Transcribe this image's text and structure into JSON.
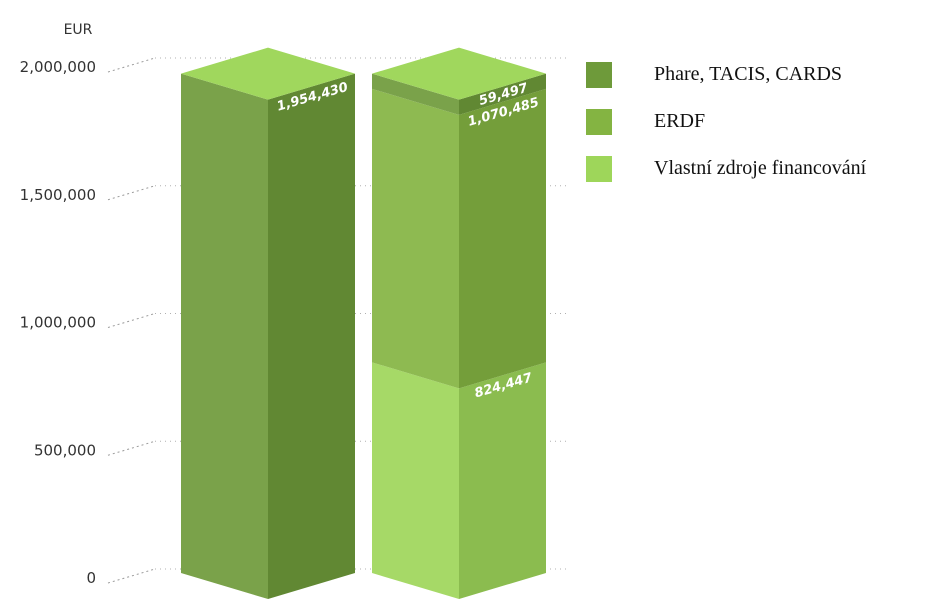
{
  "chart_data": {
    "type": "bar",
    "stacked": true,
    "unit_label": "EUR",
    "ylim": [
      0,
      2000000
    ],
    "y_ticks": [
      {
        "value": 0,
        "label": "0"
      },
      {
        "value": 500000,
        "label": "500,000"
      },
      {
        "value": 1000000,
        "label": "1,000,000"
      },
      {
        "value": 1500000,
        "label": "1,500,000"
      },
      {
        "value": 2000000,
        "label": "2,000,000"
      }
    ],
    "grid": true,
    "legend_position": "right",
    "series": [
      {
        "name": "Phare, TACIS, CARDS",
        "color": "#6e9a3a"
      },
      {
        "name": "ERDF",
        "color": "#84b442"
      },
      {
        "name": "Vlastní zdroje financování",
        "color": "#9ed65a"
      }
    ],
    "bars": [
      {
        "segments": [
          {
            "series": 0,
            "value": 1954430,
            "label": "1,954,430"
          }
        ]
      },
      {
        "segments": [
          {
            "series": 2,
            "value": 824447,
            "label": "824,447"
          },
          {
            "series": 1,
            "value": 1070485,
            "label": "1,070,485"
          },
          {
            "series": 0,
            "value": 59497,
            "label": "59,497"
          }
        ]
      }
    ]
  }
}
